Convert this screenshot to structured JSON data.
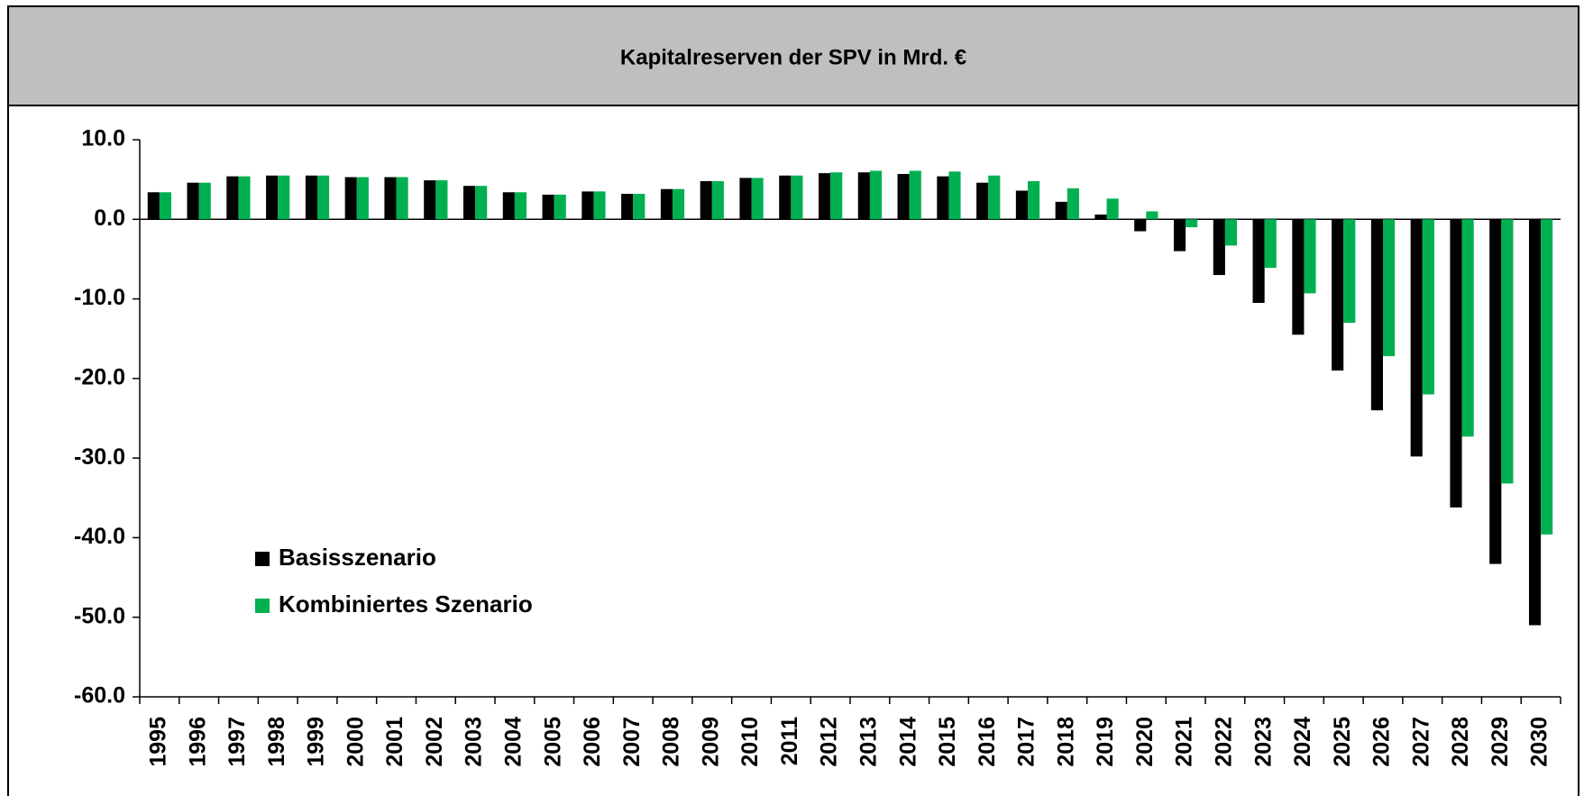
{
  "chart_data": {
    "type": "bar",
    "title": "Kapitalreserven der SPV in Mrd. €",
    "categories": [
      "1995",
      "1996",
      "1997",
      "1998",
      "1999",
      "2000",
      "2001",
      "2002",
      "2003",
      "2004",
      "2005",
      "2006",
      "2007",
      "2008",
      "2009",
      "2010",
      "2011",
      "2012",
      "2013",
      "2014",
      "2015",
      "2016",
      "2017",
      "2018",
      "2019",
      "2020",
      "2021",
      "2022",
      "2023",
      "2024",
      "2025",
      "2026",
      "2027",
      "2028",
      "2029",
      "2030"
    ],
    "series": [
      {
        "name": "Basisszenario",
        "color": "#000000",
        "values": [
          3.4,
          4.6,
          5.4,
          5.5,
          5.5,
          5.3,
          5.3,
          4.9,
          4.2,
          3.4,
          3.1,
          3.5,
          3.2,
          3.8,
          4.8,
          5.2,
          5.5,
          5.8,
          5.9,
          5.7,
          5.4,
          4.6,
          3.6,
          2.2,
          0.6,
          -1.5,
          -4.0,
          -7.0,
          -10.5,
          -14.5,
          -19.0,
          -24.0,
          -29.8,
          -36.2,
          -43.3,
          -51.0
        ]
      },
      {
        "name": "Kombiniertes Szenario",
        "color": "#00b050",
        "values": [
          3.4,
          4.6,
          5.4,
          5.5,
          5.5,
          5.3,
          5.3,
          4.9,
          4.2,
          3.4,
          3.1,
          3.5,
          3.2,
          3.8,
          4.8,
          5.2,
          5.5,
          5.9,
          6.1,
          6.1,
          6.0,
          5.5,
          4.8,
          3.9,
          2.6,
          1.0,
          -1.0,
          -3.3,
          -6.1,
          -9.3,
          -13.0,
          -17.2,
          -22.0,
          -27.3,
          -33.2,
          -39.6
        ]
      }
    ],
    "ylim": [
      -60,
      10
    ],
    "yticks": [
      {
        "value": -60,
        "label": "-60.0"
      },
      {
        "value": -50,
        "label": "-50.0"
      },
      {
        "value": -40,
        "label": "-40.0"
      },
      {
        "value": -30,
        "label": "-30.0"
      },
      {
        "value": -20,
        "label": "-20.0"
      },
      {
        "value": -10,
        "label": "-10.0"
      },
      {
        "value": 0,
        "label": "0.0"
      },
      {
        "value": 10,
        "label": "10.0"
      }
    ],
    "grid": false,
    "legend": "lower left"
  }
}
